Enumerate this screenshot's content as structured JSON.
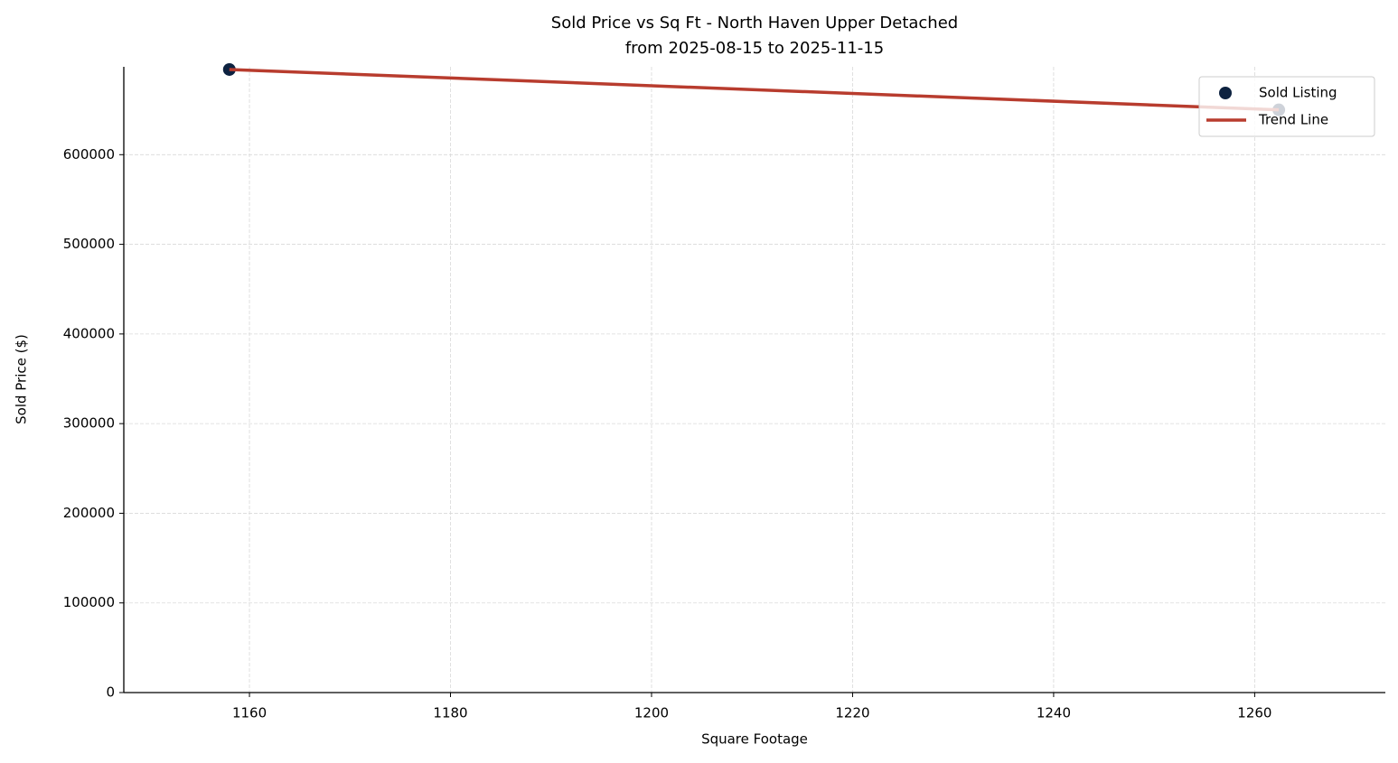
{
  "chart_data": {
    "type": "scatter",
    "title": "Sold Price vs Sq Ft - North Haven Upper Detached",
    "subtitle": "from 2025-08-15 to 2025-11-15",
    "x_label": "Square Footage",
    "y_label": "Sold Price ($)",
    "xlim": [
      1147.5,
      1273
    ],
    "xticks": [
      1160,
      1180,
      1200,
      1220,
      1240,
      1260
    ],
    "ylim": [
      0,
      698000
    ],
    "yticks": [
      0,
      100000,
      200000,
      300000,
      400000,
      500000,
      600000
    ],
    "grid": true,
    "legend": "upper right",
    "series": [
      {
        "name": "Sold Listing",
        "type": "scatter",
        "color": "#0d2240",
        "x": [
          1158,
          1262.4
        ],
        "values": [
          695000,
          650000
        ]
      },
      {
        "name": "Trend Line",
        "type": "line",
        "color": "#b83c2e",
        "x": [
          1158,
          1262.4
        ],
        "values": [
          695000,
          650000
        ]
      }
    ]
  }
}
